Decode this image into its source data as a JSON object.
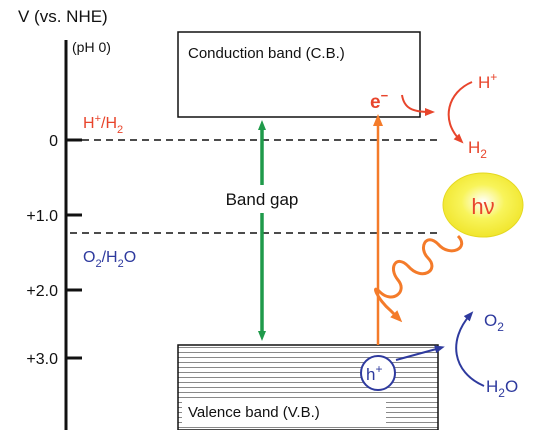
{
  "axis": {
    "title": "V (vs. NHE)",
    "subtitle": "(pH 0)",
    "ticks": [
      "0",
      "+1.0",
      "+2.0",
      "+3.0"
    ]
  },
  "bands": {
    "conduction_label": "Conduction band (C.B.)",
    "valence_label": "Valence band (V.B.)"
  },
  "band_gap_label": "Band gap",
  "redox": {
    "h_label_main": "H",
    "h_label_sup": "+",
    "h_label_mid": "/H",
    "h_label_sub": "2",
    "o_label_main": "O",
    "o_label_sub": "2",
    "o_label_mid": "/H",
    "o_label_sub2": "2",
    "o_label_end": "O"
  },
  "electron": {
    "main": "e",
    "sup": "−"
  },
  "hole": {
    "main": "h",
    "sup": "+"
  },
  "photon_label": "hν",
  "reactions": {
    "h_plus_main": "H",
    "h_plus_sup": "+",
    "h2_main": "H",
    "h2_sub": "2",
    "o2_main": "O",
    "o2_sub": "2",
    "h2o_main": "H",
    "h2o_sub": "2",
    "h2o_end": "O"
  },
  "colors": {
    "red": "#e8452c",
    "blue": "#2e3a9e",
    "green": "#1f9a4a",
    "orange": "#f47b2a",
    "yellow": "#f3ee3c"
  }
}
